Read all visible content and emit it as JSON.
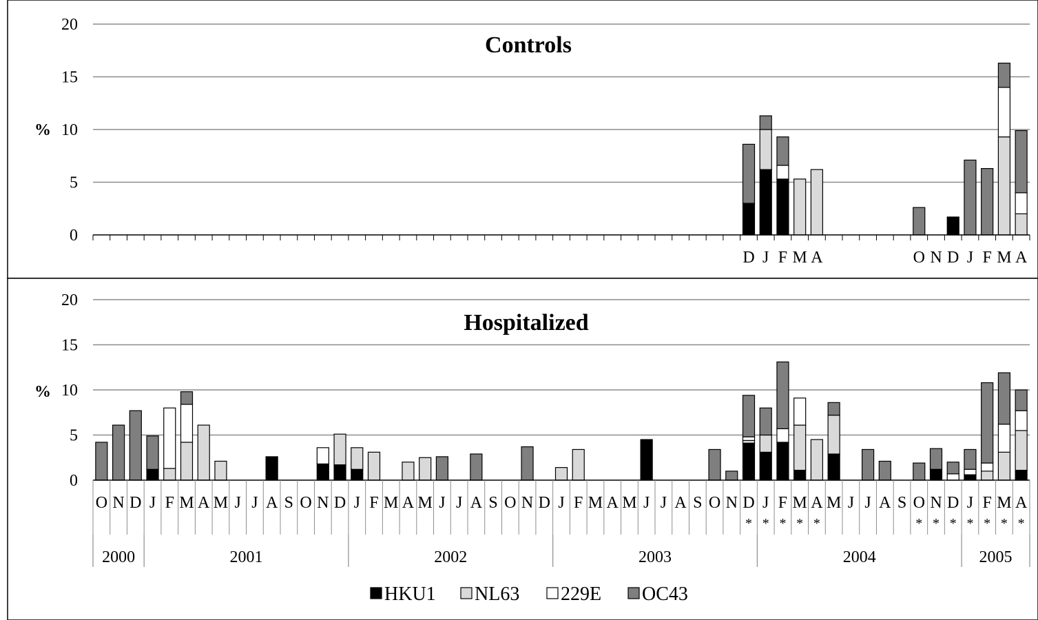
{
  "chart_data": [
    {
      "type": "bar",
      "stacked": true,
      "title": "Controls",
      "ylabel": "%",
      "ylim": [
        0,
        20
      ],
      "yticks": [
        0,
        5,
        10,
        15,
        20
      ],
      "grid": true,
      "visible_month_labels": [
        "D",
        "J",
        "F",
        "M",
        "A",
        "O",
        "N",
        "D",
        "J",
        "F",
        "M",
        "A"
      ],
      "series": [
        {
          "name": "HKU1",
          "color": "#000000",
          "values": {
            "Dec 2003": 3.0,
            "Jan 2004": 6.2,
            "Feb 2004": 5.3,
            "Dec 2004": 1.7
          }
        },
        {
          "name": "NL63",
          "color": "#d9d9d9",
          "values": {
            "Jan 2004": 3.8,
            "Mar 2004": 5.3,
            "Apr 2004": 6.2,
            "Mar 2005": 9.3,
            "Apr 2005": 2.0
          }
        },
        {
          "name": "229E",
          "color": "#ffffff",
          "values": {
            "Feb 2004": 1.3,
            "Mar 2005": 4.7,
            "Apr 2005": 2.0
          }
        },
        {
          "name": "OC43",
          "color": "#7f7f7f",
          "values": {
            "Dec 2003": 5.6,
            "Jan 2004": 1.3,
            "Feb 2004": 2.7,
            "Oct 2004": 2.6,
            "Jan 2005": 7.1,
            "Feb 2005": 6.3,
            "Mar 2005": 2.3,
            "Apr 2005": 5.9
          }
        }
      ]
    },
    {
      "type": "bar",
      "stacked": true,
      "title": "Hospitalized",
      "ylabel": "%",
      "ylim": [
        0,
        20
      ],
      "yticks": [
        0,
        5,
        10,
        15,
        20
      ],
      "grid": true,
      "categories": [
        "O",
        "N",
        "D",
        "J",
        "F",
        "M",
        "A",
        "M",
        "J",
        "J",
        "A",
        "S",
        "O",
        "N",
        "D",
        "J",
        "F",
        "M",
        "A",
        "M",
        "J",
        "J",
        "A",
        "S",
        "O",
        "N",
        "D",
        "J",
        "F",
        "M",
        "A",
        "M",
        "J",
        "J",
        "A",
        "S",
        "O",
        "N",
        "D",
        "J",
        "F",
        "M",
        "A",
        "M",
        "J",
        "J",
        "A",
        "S",
        "O",
        "N",
        "D",
        "J",
        "F",
        "M",
        "A"
      ],
      "years": [
        "2000",
        "2001",
        "2002",
        "2003",
        "2004",
        "2005"
      ],
      "starred_months": [
        "Dec 2003",
        "Jan 2004",
        "Feb 2004",
        "Mar 2004",
        "Apr 2004",
        "Oct 2004",
        "Nov 2004",
        "Dec 2004",
        "Jan 2005",
        "Feb 2005",
        "Mar 2005",
        "Apr 2005"
      ],
      "star_mark": "*",
      "series": [
        {
          "name": "HKU1",
          "color": "#000000",
          "values": [
            0,
            0,
            0,
            1.2,
            0,
            0,
            0,
            0,
            0,
            0,
            2.6,
            0,
            0,
            1.8,
            1.7,
            1.2,
            0,
            0,
            0,
            0,
            0,
            0,
            0,
            0,
            0,
            0,
            0,
            0,
            0,
            0,
            0,
            0,
            4.5,
            0,
            0,
            0,
            0,
            0,
            4.1,
            3.1,
            4.2,
            1.1,
            0,
            2.9,
            0,
            0,
            0,
            0,
            0,
            1.2,
            0,
            0.6,
            0,
            0,
            1.1
          ]
        },
        {
          "name": "NL63",
          "color": "#d9d9d9",
          "values": [
            0,
            0,
            0,
            0,
            1.3,
            4.2,
            6.1,
            2.1,
            0,
            0,
            0,
            0,
            0,
            0,
            3.4,
            2.4,
            3.1,
            0,
            2.0,
            2.5,
            0,
            0,
            0,
            0,
            0,
            0,
            0,
            1.4,
            3.4,
            0,
            0,
            0,
            0,
            0,
            0,
            0,
            0,
            0,
            0.3,
            1.9,
            0,
            5.0,
            4.5,
            4.3,
            0,
            0,
            0,
            0,
            0,
            0,
            0,
            0,
            1.0,
            3.1,
            4.4
          ]
        },
        {
          "name": "229E",
          "color": "#ffffff",
          "values": [
            0,
            0,
            0,
            0,
            6.7,
            4.2,
            0,
            0,
            0,
            0,
            0,
            0,
            0,
            1.8,
            0,
            0,
            0,
            0,
            0,
            0,
            0,
            0,
            0,
            0,
            0,
            0,
            0,
            0,
            0,
            0,
            0,
            0,
            0,
            0,
            0,
            0,
            0,
            0,
            0.4,
            0,
            1.5,
            3.0,
            0,
            0,
            0,
            0,
            0,
            0,
            0,
            0,
            0.7,
            0.6,
            0.9,
            3.1,
            2.2
          ]
        },
        {
          "name": "OC43",
          "color": "#7f7f7f",
          "values": [
            4.2,
            6.1,
            7.7,
            3.7,
            0,
            1.4,
            0,
            0,
            0,
            0,
            0,
            0,
            0,
            0,
            0,
            0,
            0,
            0,
            0,
            0,
            2.6,
            0,
            2.9,
            0,
            0,
            3.7,
            0,
            0,
            0,
            0,
            0,
            0,
            0,
            0,
            0,
            0,
            3.4,
            1.0,
            4.6,
            3.0,
            7.4,
            0,
            0,
            1.4,
            0,
            3.4,
            2.1,
            0,
            1.9,
            2.3,
            1.3,
            2.2,
            8.9,
            5.7,
            2.3
          ]
        }
      ]
    }
  ],
  "legend": [
    "HKU1",
    "NL63",
    "229E",
    "OC43"
  ]
}
